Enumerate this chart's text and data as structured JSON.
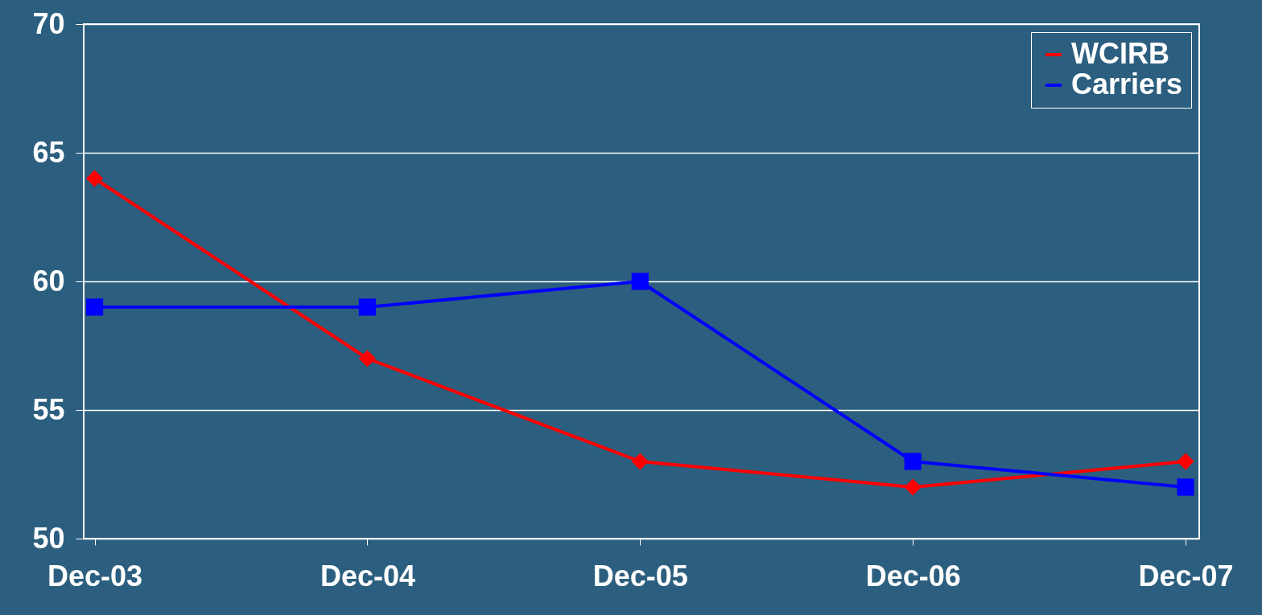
{
  "chart_data": {
    "type": "line",
    "categories": [
      "Dec-03",
      "Dec-04",
      "Dec-05",
      "Dec-06",
      "Dec-07"
    ],
    "series": [
      {
        "name": "WCIRB",
        "color": "#ff0000",
        "marker": "diamond",
        "values": [
          64,
          57,
          53,
          52,
          53
        ]
      },
      {
        "name": "Carriers",
        "color": "#0000ff",
        "marker": "square",
        "values": [
          59,
          59,
          60,
          53,
          52
        ]
      }
    ],
    "ylim": [
      50,
      70
    ],
    "yticks": [
      50,
      55,
      60,
      65,
      70
    ],
    "grid": "y",
    "legend": "top right",
    "line_style": "solid"
  }
}
